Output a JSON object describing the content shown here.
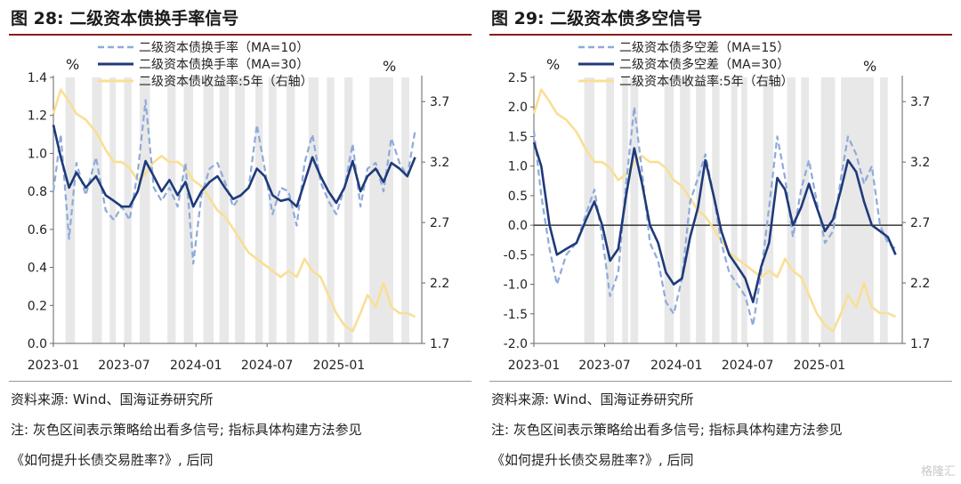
{
  "charts": [
    {
      "figure_title": "图 28:  二级资本债换手率信号",
      "source": "资料来源:  Wind、国海证券研究所",
      "note_line1": "注:  灰色区间表示策略给出看多信号;  指标具体构建方法参见",
      "note_line2": "《如何提升长债交易胜率?》,  后同"
    },
    {
      "figure_title": "图 29:  二级资本债多空信号",
      "source": "资料来源:  Wind、国海证券研究所",
      "note_line1": "注:  灰色区间表示策略给出看多信号;  指标具体构建方法参见",
      "note_line2": "《如何提升长债交易胜率?》,  后同"
    }
  ],
  "watermark": "格隆汇",
  "colors": {
    "ma_short": "#8eaadb",
    "ma_long": "#1f3a7a",
    "yield": "#f9df96",
    "shade": "#e8e8e8",
    "accent": "#8a1c1c"
  },
  "chart_data": [
    {
      "type": "line",
      "title": "",
      "left_unit": "%",
      "right_unit": "%",
      "x_ticks": [
        "2023-01",
        "2023-07",
        "2024-01",
        "2024-07",
        "2025-01"
      ],
      "x_range": [
        "2023-01-01",
        "2025-08-01"
      ],
      "y_left": {
        "ticks": [
          "0.0",
          "0.2",
          "0.4",
          "0.6",
          "0.8",
          "1.0",
          "1.2",
          "1.4"
        ],
        "range": [
          0,
          1.4
        ]
      },
      "y_right": {
        "ticks": [
          "1.7",
          "2.2",
          "2.7",
          "3.2",
          "3.7"
        ],
        "range": [
          1.7,
          3.9
        ]
      },
      "legend_position": "top-center",
      "shaded_periods": [
        [
          "2023-02-01",
          "2023-02-25"
        ],
        [
          "2023-04-10",
          "2023-05-05"
        ],
        [
          "2023-05-25",
          "2023-06-10"
        ],
        [
          "2023-07-01",
          "2023-07-20"
        ],
        [
          "2023-08-10",
          "2023-09-05"
        ],
        [
          "2023-10-20",
          "2023-11-10"
        ],
        [
          "2023-12-01",
          "2023-12-25"
        ],
        [
          "2024-01-20",
          "2024-02-15"
        ],
        [
          "2024-03-01",
          "2024-03-25"
        ],
        [
          "2024-04-10",
          "2024-05-05"
        ],
        [
          "2024-06-01",
          "2024-06-20"
        ],
        [
          "2024-07-05",
          "2024-07-25"
        ],
        [
          "2024-08-20",
          "2024-09-10"
        ],
        [
          "2024-10-15",
          "2024-11-10"
        ],
        [
          "2024-12-01",
          "2024-12-20"
        ],
        [
          "2025-01-15",
          "2025-02-05"
        ],
        [
          "2025-03-20",
          "2025-05-20"
        ],
        [
          "2025-06-10",
          "2025-06-30"
        ]
      ],
      "series": [
        {
          "name": "二级资本债换手率（MA=10）",
          "axis": "left",
          "style": "dashed",
          "x": [
            "2023-01-01",
            "2023-01-20",
            "2023-02-10",
            "2023-03-01",
            "2023-03-25",
            "2023-04-20",
            "2023-05-15",
            "2023-06-05",
            "2023-06-25",
            "2023-07-15",
            "2023-08-05",
            "2023-08-25",
            "2023-09-15",
            "2023-10-05",
            "2023-10-25",
            "2023-11-15",
            "2023-12-05",
            "2023-12-25",
            "2024-01-15",
            "2024-02-05",
            "2024-02-25",
            "2024-03-15",
            "2024-04-05",
            "2024-04-25",
            "2024-05-15",
            "2024-06-05",
            "2024-06-25",
            "2024-07-15",
            "2024-08-05",
            "2024-08-25",
            "2024-09-15",
            "2024-10-05",
            "2024-10-25",
            "2024-11-15",
            "2024-12-05",
            "2024-12-25",
            "2025-01-15",
            "2025-02-05",
            "2025-02-25",
            "2025-03-15",
            "2025-04-05",
            "2025-04-25",
            "2025-05-15",
            "2025-06-05",
            "2025-06-25",
            "2025-07-15"
          ],
          "values": [
            0.8,
            1.1,
            0.55,
            0.95,
            0.78,
            0.98,
            0.7,
            0.65,
            0.72,
            0.65,
            0.9,
            1.28,
            0.82,
            0.75,
            0.82,
            0.72,
            0.95,
            0.42,
            0.78,
            0.92,
            0.95,
            0.85,
            0.72,
            0.78,
            0.82,
            1.15,
            0.92,
            0.68,
            0.82,
            0.8,
            0.62,
            0.95,
            1.1,
            0.85,
            0.75,
            0.68,
            0.82,
            1.05,
            0.72,
            0.92,
            0.95,
            0.8,
            1.08,
            0.95,
            0.88,
            1.12
          ]
        },
        {
          "name": "二级资本债换手率（MA=30）",
          "axis": "left",
          "style": "solid",
          "x": [
            "2023-01-01",
            "2023-01-20",
            "2023-02-10",
            "2023-03-01",
            "2023-03-25",
            "2023-04-20",
            "2023-05-15",
            "2023-06-05",
            "2023-06-25",
            "2023-07-15",
            "2023-08-05",
            "2023-08-25",
            "2023-09-15",
            "2023-10-05",
            "2023-10-25",
            "2023-11-15",
            "2023-12-05",
            "2023-12-25",
            "2024-01-15",
            "2024-02-05",
            "2024-02-25",
            "2024-03-15",
            "2024-04-05",
            "2024-04-25",
            "2024-05-15",
            "2024-06-05",
            "2024-06-25",
            "2024-07-15",
            "2024-08-05",
            "2024-08-25",
            "2024-09-15",
            "2024-10-05",
            "2024-10-25",
            "2024-11-15",
            "2024-12-05",
            "2024-12-25",
            "2025-01-15",
            "2025-02-05",
            "2025-02-25",
            "2025-03-15",
            "2025-04-05",
            "2025-04-25",
            "2025-05-15",
            "2025-06-05",
            "2025-06-25",
            "2025-07-15"
          ],
          "values": [
            1.15,
            0.98,
            0.82,
            0.9,
            0.82,
            0.88,
            0.78,
            0.75,
            0.72,
            0.72,
            0.8,
            0.96,
            0.88,
            0.8,
            0.86,
            0.78,
            0.85,
            0.72,
            0.8,
            0.85,
            0.88,
            0.82,
            0.76,
            0.78,
            0.82,
            0.92,
            0.88,
            0.78,
            0.75,
            0.76,
            0.72,
            0.85,
            0.98,
            0.88,
            0.8,
            0.74,
            0.82,
            0.96,
            0.8,
            0.88,
            0.92,
            0.85,
            0.95,
            0.92,
            0.88,
            0.98
          ]
        },
        {
          "name": "二级资本债收益率:5年（右轴）",
          "axis": "right",
          "style": "solid",
          "x": [
            "2023-01-01",
            "2023-01-20",
            "2023-02-10",
            "2023-03-01",
            "2023-03-25",
            "2023-04-20",
            "2023-05-15",
            "2023-06-05",
            "2023-06-25",
            "2023-07-15",
            "2023-08-05",
            "2023-08-25",
            "2023-09-15",
            "2023-10-05",
            "2023-10-25",
            "2023-11-15",
            "2023-12-05",
            "2023-12-25",
            "2024-01-15",
            "2024-02-05",
            "2024-02-25",
            "2024-03-15",
            "2024-04-05",
            "2024-04-25",
            "2024-05-15",
            "2024-06-05",
            "2024-06-25",
            "2024-07-15",
            "2024-08-05",
            "2024-08-25",
            "2024-09-15",
            "2024-10-05",
            "2024-10-25",
            "2024-11-15",
            "2024-12-05",
            "2024-12-25",
            "2025-01-15",
            "2025-02-05",
            "2025-02-25",
            "2025-03-15",
            "2025-04-05",
            "2025-04-25",
            "2025-05-15",
            "2025-06-05",
            "2025-06-25",
            "2025-07-15"
          ],
          "values": [
            3.6,
            3.8,
            3.7,
            3.6,
            3.55,
            3.45,
            3.3,
            3.2,
            3.2,
            3.15,
            3.05,
            3.1,
            3.2,
            3.25,
            3.2,
            3.2,
            3.15,
            3.05,
            3.0,
            2.9,
            2.8,
            2.75,
            2.65,
            2.55,
            2.45,
            2.4,
            2.35,
            2.3,
            2.25,
            2.3,
            2.25,
            2.4,
            2.3,
            2.25,
            2.1,
            1.95,
            1.85,
            1.8,
            1.95,
            2.1,
            2.0,
            2.2,
            2.0,
            1.95,
            1.95,
            1.92
          ]
        }
      ]
    },
    {
      "type": "line",
      "title": "",
      "left_unit": "%",
      "right_unit": "%",
      "x_ticks": [
        "2023-01",
        "2023-07",
        "2024-01",
        "2024-07",
        "2025-01"
      ],
      "x_range": [
        "2023-01-01",
        "2025-08-01"
      ],
      "y_left": {
        "ticks": [
          "-2.0",
          "-1.5",
          "-1.0",
          "-0.5",
          "0.0",
          "0.5",
          "1.0",
          "1.5",
          "2.0",
          "2.5"
        ],
        "range": [
          -2.0,
          2.5
        ]
      },
      "y_right": {
        "ticks": [
          "1.7",
          "2.2",
          "2.7",
          "3.2",
          "3.7"
        ],
        "range": [
          1.7,
          3.9
        ]
      },
      "zero_line": 0,
      "legend_position": "top-center",
      "shaded_periods": [
        [
          "2023-05-10",
          "2023-06-05"
        ],
        [
          "2023-07-05",
          "2023-07-25"
        ],
        [
          "2023-08-15",
          "2023-08-30"
        ],
        [
          "2023-09-05",
          "2023-09-25"
        ],
        [
          "2023-12-01",
          "2023-12-25"
        ],
        [
          "2024-01-10",
          "2024-02-05"
        ],
        [
          "2024-02-20",
          "2024-03-15"
        ],
        [
          "2024-04-01",
          "2024-04-20"
        ],
        [
          "2024-05-20",
          "2024-06-05"
        ],
        [
          "2024-06-15",
          "2024-06-30"
        ],
        [
          "2024-08-10",
          "2024-09-05"
        ],
        [
          "2024-10-10",
          "2024-11-01"
        ],
        [
          "2024-11-15",
          "2024-12-05"
        ],
        [
          "2025-01-05",
          "2025-02-10"
        ],
        [
          "2025-02-25",
          "2025-05-20"
        ],
        [
          "2025-06-05",
          "2025-06-25"
        ]
      ],
      "series": [
        {
          "name": "二级资本债多空差（MA=15）",
          "axis": "left",
          "style": "dashed",
          "x": [
            "2023-01-01",
            "2023-01-20",
            "2023-02-10",
            "2023-03-01",
            "2023-03-25",
            "2023-04-20",
            "2023-05-15",
            "2023-06-05",
            "2023-06-25",
            "2023-07-15",
            "2023-08-05",
            "2023-08-25",
            "2023-09-15",
            "2023-10-05",
            "2023-10-25",
            "2023-11-15",
            "2023-12-05",
            "2023-12-25",
            "2024-01-15",
            "2024-02-05",
            "2024-02-25",
            "2024-03-15",
            "2024-04-05",
            "2024-04-25",
            "2024-05-15",
            "2024-06-05",
            "2024-06-25",
            "2024-07-15",
            "2024-08-05",
            "2024-08-25",
            "2024-09-15",
            "2024-10-05",
            "2024-10-25",
            "2024-11-15",
            "2024-12-05",
            "2024-12-25",
            "2025-01-15",
            "2025-02-05",
            "2025-02-25",
            "2025-03-15",
            "2025-04-05",
            "2025-04-25",
            "2025-05-15",
            "2025-06-05",
            "2025-06-25",
            "2025-07-15"
          ],
          "values": [
            1.6,
            0.5,
            -0.4,
            -1.0,
            -0.5,
            -0.3,
            0.2,
            0.6,
            -0.2,
            -1.2,
            -0.8,
            0.7,
            2.0,
            0.9,
            -0.3,
            -0.6,
            -1.3,
            -1.5,
            -0.9,
            0.4,
            0.8,
            1.2,
            0.5,
            -0.3,
            -0.8,
            -1.0,
            -1.2,
            -1.7,
            -0.8,
            0.3,
            1.5,
            0.8,
            -0.2,
            0.6,
            1.1,
            0.4,
            -0.3,
            -0.1,
            0.8,
            1.5,
            1.2,
            0.7,
            1.0,
            0.0,
            -0.3,
            -0.4
          ]
        },
        {
          "name": "二级资本债多空差（MA=30）",
          "axis": "left",
          "style": "solid",
          "x": [
            "2023-01-01",
            "2023-01-20",
            "2023-02-10",
            "2023-03-01",
            "2023-03-25",
            "2023-04-20",
            "2023-05-15",
            "2023-06-05",
            "2023-06-25",
            "2023-07-15",
            "2023-08-05",
            "2023-08-25",
            "2023-09-15",
            "2023-10-05",
            "2023-10-25",
            "2023-11-15",
            "2023-12-05",
            "2023-12-25",
            "2024-01-15",
            "2024-02-05",
            "2024-02-25",
            "2024-03-15",
            "2024-04-05",
            "2024-04-25",
            "2024-05-15",
            "2024-06-05",
            "2024-06-25",
            "2024-07-15",
            "2024-08-05",
            "2024-08-25",
            "2024-09-15",
            "2024-10-05",
            "2024-10-25",
            "2024-11-15",
            "2024-12-05",
            "2024-12-25",
            "2025-01-15",
            "2025-02-05",
            "2025-02-25",
            "2025-03-15",
            "2025-04-05",
            "2025-04-25",
            "2025-05-15",
            "2025-06-05",
            "2025-06-25",
            "2025-07-15"
          ],
          "values": [
            1.4,
            1.0,
            0.0,
            -0.5,
            -0.4,
            -0.3,
            0.1,
            0.4,
            0.0,
            -0.6,
            -0.4,
            0.5,
            1.3,
            0.7,
            0.0,
            -0.3,
            -0.8,
            -1.0,
            -0.9,
            -0.2,
            0.3,
            1.1,
            0.5,
            -0.1,
            -0.5,
            -0.7,
            -0.9,
            -1.3,
            -0.7,
            -0.3,
            0.8,
            0.6,
            0.0,
            0.3,
            0.7,
            0.3,
            -0.1,
            0.1,
            0.6,
            1.1,
            0.9,
            0.4,
            0.0,
            -0.1,
            -0.2,
            -0.5
          ]
        },
        {
          "name": "二级资本债收益率:5年（右轴）",
          "axis": "right",
          "style": "solid",
          "x": [
            "2023-01-01",
            "2023-01-20",
            "2023-02-10",
            "2023-03-01",
            "2023-03-25",
            "2023-04-20",
            "2023-05-15",
            "2023-06-05",
            "2023-06-25",
            "2023-07-15",
            "2023-08-05",
            "2023-08-25",
            "2023-09-15",
            "2023-10-05",
            "2023-10-25",
            "2023-11-15",
            "2023-12-05",
            "2023-12-25",
            "2024-01-15",
            "2024-02-05",
            "2024-02-25",
            "2024-03-15",
            "2024-04-05",
            "2024-04-25",
            "2024-05-15",
            "2024-06-05",
            "2024-06-25",
            "2024-07-15",
            "2024-08-05",
            "2024-08-25",
            "2024-09-15",
            "2024-10-05",
            "2024-10-25",
            "2024-11-15",
            "2024-12-05",
            "2024-12-25",
            "2025-01-15",
            "2025-02-05",
            "2025-02-25",
            "2025-03-15",
            "2025-04-05",
            "2025-04-25",
            "2025-05-15",
            "2025-06-05",
            "2025-06-25",
            "2025-07-15"
          ],
          "values": [
            3.6,
            3.8,
            3.7,
            3.6,
            3.55,
            3.45,
            3.3,
            3.2,
            3.2,
            3.15,
            3.05,
            3.1,
            3.2,
            3.25,
            3.2,
            3.2,
            3.15,
            3.05,
            3.0,
            2.9,
            2.8,
            2.75,
            2.65,
            2.55,
            2.45,
            2.4,
            2.35,
            2.3,
            2.25,
            2.3,
            2.25,
            2.4,
            2.3,
            2.25,
            2.1,
            1.95,
            1.85,
            1.8,
            1.95,
            2.1,
            2.0,
            2.2,
            2.0,
            1.95,
            1.95,
            1.92
          ]
        }
      ]
    }
  ]
}
